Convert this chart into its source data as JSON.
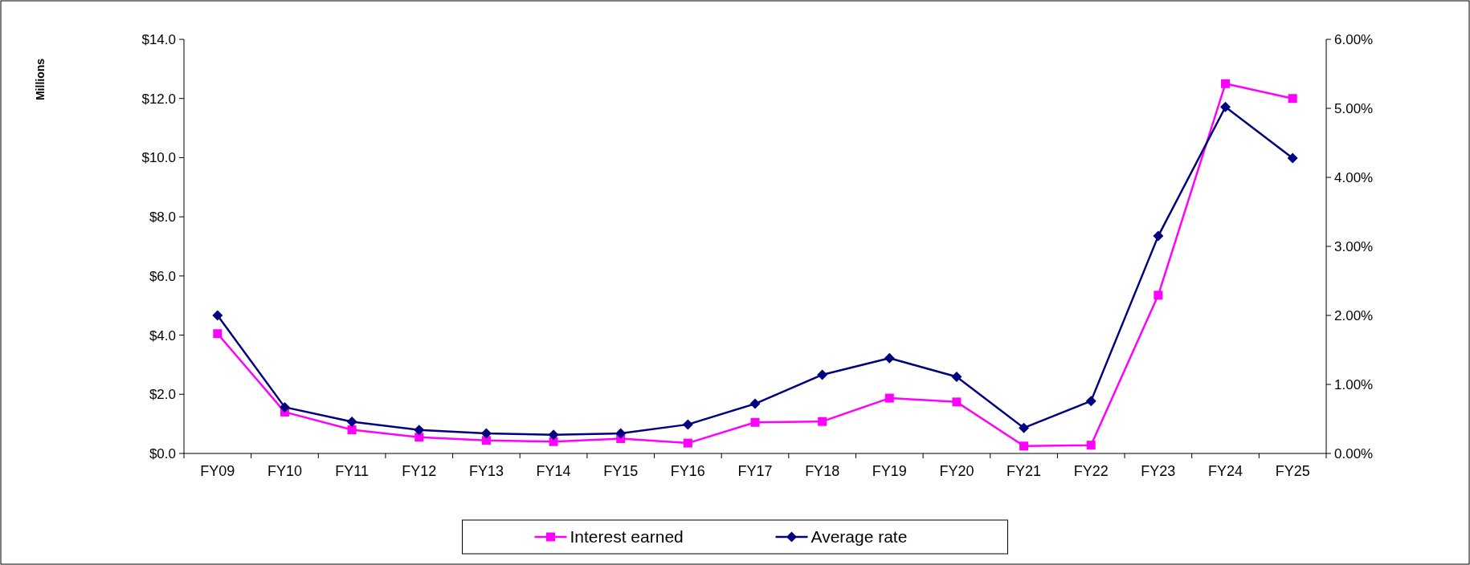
{
  "chart_data": {
    "type": "line",
    "annotations": [
      "Millions"
    ],
    "categories": [
      "FY09",
      "FY10",
      "FY11",
      "FY12",
      "FY13",
      "FY14",
      "FY15",
      "FY16",
      "FY17",
      "FY18",
      "FY19",
      "FY20",
      "FY21",
      "FY22",
      "FY23",
      "FY24",
      "FY25"
    ],
    "series": [
      {
        "name": "Interest earned",
        "color": "#ff00ff",
        "marker": "square",
        "values": [
          4.05,
          1.4,
          0.8,
          0.55,
          0.44,
          0.4,
          0.5,
          0.35,
          1.05,
          1.08,
          1.87,
          1.74,
          0.25,
          0.28,
          5.35,
          12.5,
          12.0
        ]
      },
      {
        "name": "Average rate",
        "color": "#000080",
        "marker": "diamond",
        "axis": "y2",
        "values": [
          2.0,
          0.67,
          0.46,
          0.34,
          0.29,
          0.27,
          0.29,
          0.42,
          0.72,
          1.14,
          1.38,
          1.11,
          0.37,
          0.76,
          3.15,
          5.02,
          4.28
        ]
      }
    ],
    "ylim": [
      0,
      14
    ],
    "yticks": [
      {
        "value": 0,
        "label": "$0.0"
      },
      {
        "value": 2,
        "label": "$2.0"
      },
      {
        "value": 4,
        "label": "$4.0"
      },
      {
        "value": 6,
        "label": "$6.0"
      },
      {
        "value": 8,
        "label": "$8.0"
      },
      {
        "value": 10,
        "label": "$10.0"
      },
      {
        "value": 12,
        "label": "$12.0"
      },
      {
        "value": 14,
        "label": "$14.0"
      }
    ],
    "y2lim": [
      0,
      6
    ],
    "y2ticks": [
      {
        "value": 0,
        "label": "0.00%"
      },
      {
        "value": 1,
        "label": "1.00%"
      },
      {
        "value": 2,
        "label": "2.00%"
      },
      {
        "value": 3,
        "label": "3.00%"
      },
      {
        "value": 4,
        "label": "4.00%"
      },
      {
        "value": 5,
        "label": "5.00%"
      },
      {
        "value": 6,
        "label": "6.00%"
      }
    ],
    "grid": false,
    "legend": "bottom"
  }
}
